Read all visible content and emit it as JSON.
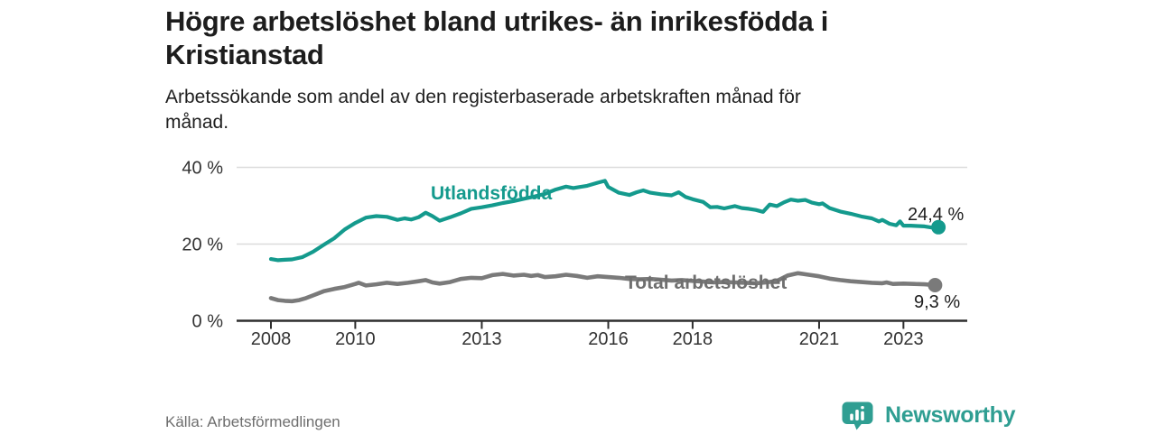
{
  "header": {
    "title": "Högre arbetslöshet bland utrikes- än inrikesfödda i Kristianstad",
    "title_lines": [
      "Högre arbetslöshet bland utrikes- än inrikesfödda i",
      "Kristianstad"
    ],
    "subtitle": "Arbetssökande som andel av den registerbaserade arbetskraften månad för månad.",
    "subtitle_lines": [
      "Arbetssökande som andel av den registerbaserade arbetskraften månad för",
      "månad."
    ]
  },
  "footer": {
    "source": "Källa: Arbetsförmedlingen",
    "brand_name": "Newsworthy",
    "logo_icon": "speech-bubble-bar-chart-icon"
  },
  "colors": {
    "teal_line": "#149a8d",
    "gray_line": "#7a7a7a",
    "gray_label": "#6f6f6f",
    "axis": "#2e2e2e",
    "grid": "#dcdcdc",
    "tick_text": "#333333",
    "logo_teal": "#2f9e92",
    "text_dark": "#1d1d1d",
    "source_gray": "#6e6e6e"
  },
  "chart_data": {
    "type": "line",
    "title": "Högre arbetslöshet bland utrikes- än inrikesfödda i Kristianstad",
    "subtitle": "Arbetssökande som andel av den registerbaserade arbetskraften månad för månad.",
    "source": "Källa: Arbetsförmedlingen",
    "unit": "%",
    "grid": "horizontal-only",
    "legend_position": "inline-labels",
    "ylim": [
      0,
      40
    ],
    "xlim": [
      2007.2,
      2024.5
    ],
    "y_ticks": [
      {
        "value": 0,
        "label": "0 %"
      },
      {
        "value": 20,
        "label": "20 %"
      },
      {
        "value": 40,
        "label": "40 %"
      }
    ],
    "x_ticks": [
      {
        "value": 2008,
        "label": "2008"
      },
      {
        "value": 2010,
        "label": "2010"
      },
      {
        "value": 2013,
        "label": "2013"
      },
      {
        "value": 2016,
        "label": "2016"
      },
      {
        "value": 2018,
        "label": "2018"
      },
      {
        "value": 2021,
        "label": "2021"
      },
      {
        "value": 2023,
        "label": "2023"
      }
    ],
    "series": [
      {
        "name": "Utlandsfödda",
        "color": "#149a8d",
        "end_label": "24,4 %",
        "end_value": 24.4,
        "x": [
          2008.0,
          2008.17,
          2008.33,
          2008.5,
          2008.75,
          2009.0,
          2009.25,
          2009.5,
          2009.75,
          2010.0,
          2010.25,
          2010.5,
          2010.75,
          2011.0,
          2011.17,
          2011.33,
          2011.5,
          2011.67,
          2011.83,
          2012.0,
          2012.25,
          2012.5,
          2012.75,
          2013.0,
          2013.25,
          2013.5,
          2013.75,
          2014.0,
          2014.25,
          2014.5,
          2014.75,
          2015.0,
          2015.17,
          2015.33,
          2015.5,
          2015.75,
          2015.92,
          2016.0,
          2016.25,
          2016.5,
          2016.67,
          2016.83,
          2017.0,
          2017.25,
          2017.5,
          2017.67,
          2017.83,
          2018.0,
          2018.25,
          2018.42,
          2018.58,
          2018.75,
          2019.0,
          2019.17,
          2019.33,
          2019.5,
          2019.67,
          2019.83,
          2020.0,
          2020.17,
          2020.33,
          2020.5,
          2020.67,
          2020.83,
          2021.0,
          2021.08,
          2021.25,
          2021.5,
          2021.75,
          2022.0,
          2022.25,
          2022.42,
          2022.5,
          2022.67,
          2022.83,
          2022.92,
          2023.0,
          2023.17,
          2023.33,
          2023.5,
          2023.67,
          2023.83
        ],
        "values": [
          16.1,
          15.8,
          15.9,
          16.0,
          16.6,
          18.0,
          19.8,
          21.5,
          23.8,
          25.5,
          26.9,
          27.3,
          27.1,
          26.3,
          26.7,
          26.4,
          27.0,
          28.2,
          27.3,
          26.1,
          27.0,
          28.0,
          29.2,
          29.6,
          30.1,
          30.7,
          31.2,
          31.8,
          32.4,
          33.1,
          34.2,
          35.0,
          34.6,
          34.9,
          35.2,
          36.0,
          36.5,
          34.9,
          33.4,
          32.8,
          33.5,
          34.0,
          33.4,
          33.0,
          32.7,
          33.5,
          32.3,
          31.7,
          31.0,
          29.6,
          29.7,
          29.3,
          29.9,
          29.4,
          29.2,
          28.9,
          28.4,
          30.3,
          29.9,
          30.9,
          31.6,
          31.3,
          31.5,
          30.8,
          30.4,
          30.6,
          29.4,
          28.5,
          27.9,
          27.2,
          26.7,
          25.9,
          26.3,
          25.3,
          24.9,
          25.9,
          24.8,
          24.8,
          24.7,
          24.6,
          24.3,
          24.4
        ]
      },
      {
        "name": "Total arbetslöshet",
        "color": "#7a7a7a",
        "end_label": "9,3 %",
        "end_value": 9.3,
        "x": [
          2008.0,
          2008.17,
          2008.33,
          2008.5,
          2008.67,
          2008.83,
          2009.0,
          2009.25,
          2009.5,
          2009.75,
          2010.0,
          2010.08,
          2010.25,
          2010.5,
          2010.75,
          2011.0,
          2011.25,
          2011.5,
          2011.67,
          2011.83,
          2012.0,
          2012.25,
          2012.5,
          2012.75,
          2013.0,
          2013.25,
          2013.5,
          2013.75,
          2014.0,
          2014.17,
          2014.33,
          2014.5,
          2014.75,
          2015.0,
          2015.25,
          2015.5,
          2015.75,
          2016.0,
          2016.25,
          2016.5,
          2016.75,
          2017.0,
          2017.25,
          2017.5,
          2017.75,
          2018.0,
          2018.25,
          2018.5,
          2018.75,
          2019.0,
          2019.25,
          2019.5,
          2019.75,
          2020.0,
          2020.25,
          2020.5,
          2020.75,
          2021.0,
          2021.25,
          2021.5,
          2021.75,
          2022.0,
          2022.25,
          2022.5,
          2022.6,
          2022.75,
          2023.0,
          2023.25,
          2023.5,
          2023.75
        ],
        "values": [
          5.9,
          5.4,
          5.2,
          5.1,
          5.4,
          5.9,
          6.6,
          7.7,
          8.3,
          8.8,
          9.6,
          9.9,
          9.2,
          9.5,
          9.9,
          9.6,
          9.9,
          10.3,
          10.6,
          10.0,
          9.7,
          10.1,
          10.9,
          11.2,
          11.1,
          11.9,
          12.2,
          11.8,
          12.0,
          11.7,
          11.9,
          11.4,
          11.6,
          12.0,
          11.7,
          11.2,
          11.6,
          11.4,
          11.2,
          10.9,
          10.8,
          10.9,
          10.7,
          10.5,
          10.6,
          10.4,
          10.2,
          10.0,
          10.1,
          10.0,
          9.9,
          9.8,
          10.0,
          10.4,
          11.8,
          12.4,
          12.0,
          11.6,
          11.0,
          10.6,
          10.3,
          10.1,
          9.9,
          9.8,
          10.0,
          9.6,
          9.7,
          9.6,
          9.5,
          9.3
        ]
      }
    ]
  }
}
